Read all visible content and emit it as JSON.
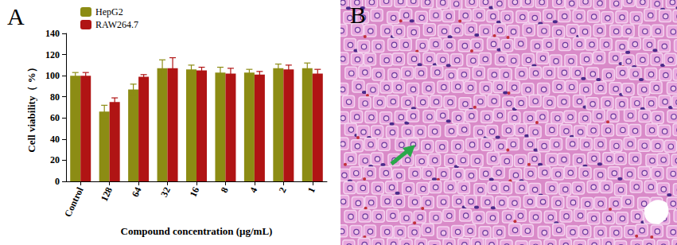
{
  "chart_data": {
    "type": "bar",
    "title": "A",
    "categories": [
      "Control",
      "128",
      "64",
      "32",
      "16",
      "8",
      "4",
      "2",
      "1"
    ],
    "series": [
      {
        "name": "HepG2",
        "color": "#8c8c14",
        "values": [
          100,
          66,
          87,
          107,
          106,
          103,
          103,
          107,
          107
        ],
        "errors": [
          3,
          6,
          5,
          8,
          4,
          5,
          3,
          4,
          5
        ]
      },
      {
        "name": "RAW264.7",
        "color": "#b01414",
        "values": [
          100,
          75,
          99,
          107,
          105,
          102,
          101,
          106,
          102
        ],
        "errors": [
          3,
          4,
          2,
          10,
          3,
          5,
          3,
          4,
          4
        ]
      }
    ],
    "x_label": "Compound concentration (μg/mL)",
    "y_label": "Cell viability（ %）",
    "ylim": [
      0,
      140
    ],
    "yticks": [
      0,
      20,
      40,
      60,
      80,
      100,
      120,
      140
    ],
    "grid": false,
    "legend": "top-left"
  },
  "image_panel": {
    "label": "B"
  }
}
